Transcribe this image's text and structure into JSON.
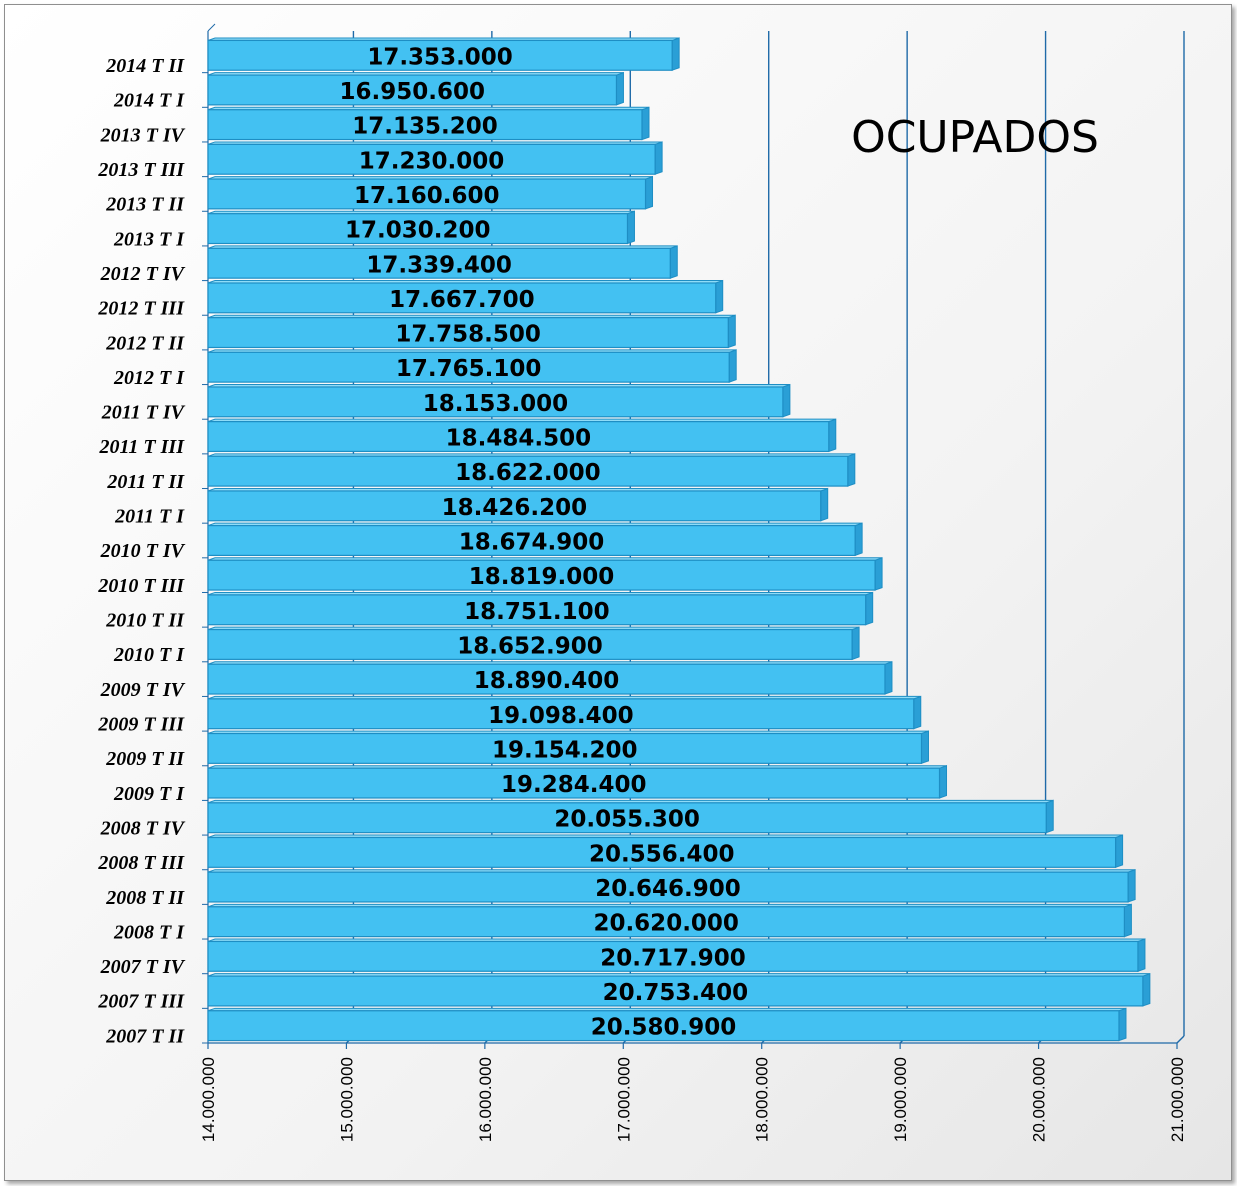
{
  "chart_data": {
    "type": "bar",
    "orientation": "horizontal",
    "title": "OCUPADOS",
    "xlabel": "",
    "ylabel": "",
    "xlim": [
      14000000,
      21000000
    ],
    "xticks": [
      "14.000.000",
      "15.000.000",
      "16.000.000",
      "17.000.000",
      "18.000.000",
      "19.000.000",
      "20.000.000",
      "21.000.000"
    ],
    "grid": true,
    "categories": [
      "2014 T II",
      "2014 T I",
      "2013 T IV",
      "2013 T III",
      "2013 T II",
      "2013 T I",
      "2012 T IV",
      "2012 T III",
      "2012 T II",
      "2012 T I",
      "2011 T IV",
      "2011 T III",
      "2011 T II",
      "2011 T I",
      "2010 T IV",
      "2010 T III",
      "2010 T II",
      "2010 T I",
      "2009 T IV",
      "2009 T III",
      "2009 T II",
      "2009 T I",
      "2008 T IV",
      "2008 T III",
      "2008 T II",
      "2008 T I",
      "2007 T IV",
      "2007 T III",
      "2007 T II"
    ],
    "values": [
      17353000,
      16950600,
      17135200,
      17230000,
      17160600,
      17030200,
      17339400,
      17667700,
      17758500,
      17765100,
      18153000,
      18484500,
      18622000,
      18426200,
      18674900,
      18819000,
      18751100,
      18652900,
      18890400,
      19098400,
      19154200,
      19284400,
      20055300,
      20556400,
      20646900,
      20620000,
      20717900,
      20753400,
      20580900
    ],
    "value_labels": [
      "17.353.000",
      "16.950.600",
      "17.135.200",
      "17.230.000",
      "17.160.600",
      "17.030.200",
      "17.339.400",
      "17.667.700",
      "17.758.500",
      "17.765.100",
      "18.153.000",
      "18.484.500",
      "18.622.000",
      "18.426.200",
      "18.674.900",
      "18.819.000",
      "18.751.100",
      "18.652.900",
      "18.890.400",
      "19.098.400",
      "19.154.200",
      "19.284.400",
      "20.055.300",
      "20.556.400",
      "20.646.900",
      "20.620.000",
      "20.717.900",
      "20.753.400",
      "20.580.900"
    ]
  },
  "colors": {
    "bar_fill": "#43c1f2",
    "bar_edge": "#1e8ec4",
    "bar_side": "#2a9fd6",
    "gridline": "#1f6aa8"
  }
}
